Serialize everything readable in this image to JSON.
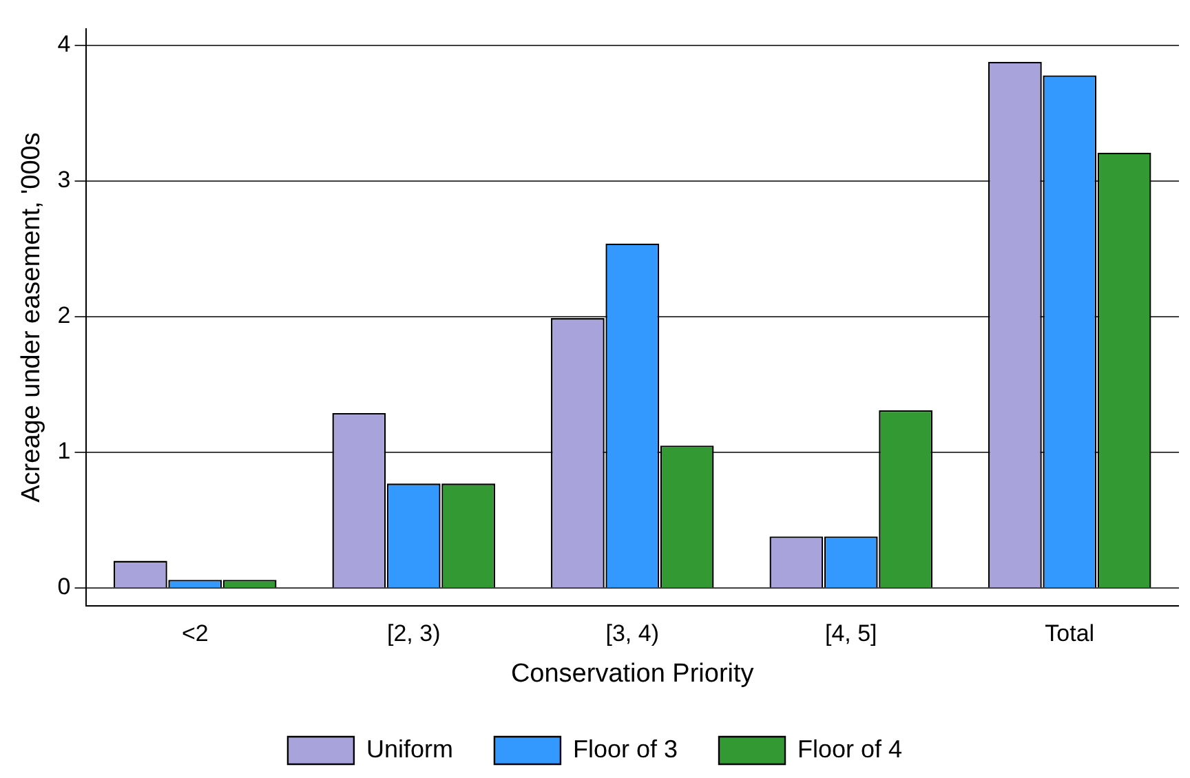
{
  "chart_data": {
    "type": "bar",
    "xlabel": "Conservation Priority",
    "ylabel": "Acreage under easement, '000s",
    "categories": [
      "<2",
      "[2, 3)",
      "[3, 4)",
      "[4, 5]",
      "Total"
    ],
    "series": [
      {
        "name": "Uniform",
        "color": "#a9a3dc",
        "values": [
          0.2,
          1.29,
          1.99,
          0.38,
          3.88
        ]
      },
      {
        "name": "Floor of 3",
        "color": "#3399ff",
        "values": [
          0.06,
          0.77,
          2.54,
          0.38,
          3.78
        ]
      },
      {
        "name": "Floor of 4",
        "color": "#339933",
        "values": [
          0.06,
          0.77,
          1.05,
          1.31,
          3.21
        ]
      }
    ],
    "ylim": [
      -0.13,
      4.12
    ],
    "yticks": [
      0,
      1,
      2,
      3,
      4
    ],
    "grid": "y",
    "legend": "bottom"
  }
}
